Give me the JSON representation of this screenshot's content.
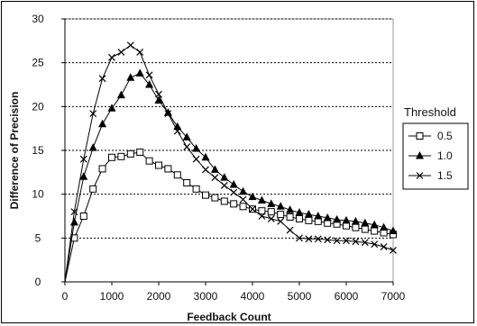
{
  "chart_data": {
    "type": "line",
    "title": "",
    "xlabel": "Feedback Count",
    "ylabel": "Difference of Precision",
    "xlim": [
      0,
      7000
    ],
    "ylim": [
      0,
      30
    ],
    "xticks": [
      0,
      1000,
      2000,
      3000,
      4000,
      5000,
      6000,
      7000
    ],
    "yticks": [
      0,
      5,
      10,
      15,
      20,
      25,
      30
    ],
    "grid": "horizontal dashed",
    "legend": {
      "title": "Threshold",
      "position": "right"
    },
    "series": [
      {
        "name": "0.5",
        "marker": "square-open",
        "x": [
          0,
          200,
          400,
          600,
          800,
          1000,
          1200,
          1400,
          1600,
          1800,
          2000,
          2200,
          2400,
          2600,
          2800,
          3000,
          3200,
          3400,
          3600,
          3800,
          4000,
          4200,
          4400,
          4600,
          4800,
          5000,
          5200,
          5400,
          5600,
          5800,
          6000,
          6200,
          6400,
          6600,
          6800,
          7000
        ],
        "y": [
          0,
          5,
          7.5,
          10.6,
          12.9,
          14.2,
          14.3,
          14.6,
          14.8,
          13.8,
          13.3,
          12.9,
          12.2,
          11.3,
          10.6,
          9.9,
          9.6,
          9.2,
          8.9,
          8.6,
          8.3,
          8.1,
          8,
          7.7,
          7.4,
          7.2,
          7,
          6.9,
          6.7,
          6.6,
          6.4,
          6.2,
          6,
          5.8,
          5.6,
          5.4
        ]
      },
      {
        "name": "1.0",
        "marker": "triangle-filled",
        "x": [
          0,
          200,
          400,
          600,
          800,
          1000,
          1200,
          1400,
          1600,
          1800,
          2000,
          2200,
          2400,
          2600,
          2800,
          3000,
          3200,
          3400,
          3600,
          3800,
          4000,
          4200,
          4400,
          4600,
          4800,
          5000,
          5200,
          5400,
          5600,
          5800,
          6000,
          6200,
          6400,
          6600,
          6800,
          7000
        ],
        "y": [
          0,
          6.8,
          12,
          15.3,
          18,
          19.8,
          21.3,
          23.3,
          23.8,
          22.5,
          20.7,
          19.3,
          17.7,
          16.5,
          15.2,
          14.2,
          12.8,
          11.9,
          11.1,
          10.3,
          9.7,
          9.3,
          8.9,
          8.6,
          8.2,
          7.9,
          7.7,
          7.5,
          7.3,
          7.1,
          7,
          6.9,
          6.7,
          6.5,
          6.2,
          5.8
        ]
      },
      {
        "name": "1.5",
        "marker": "x-cross",
        "x": [
          0,
          200,
          400,
          600,
          800,
          1000,
          1200,
          1400,
          1600,
          1800,
          2000,
          2200,
          2400,
          2600,
          2800,
          3000,
          3200,
          3400,
          3600,
          3800,
          4000,
          4200,
          4400,
          4600,
          4800,
          5000,
          5200,
          5400,
          5600,
          5800,
          6000,
          6200,
          6400,
          6600,
          6800,
          7000
        ],
        "y": [
          0,
          8,
          14,
          19.2,
          23.2,
          25.6,
          26.2,
          27,
          26.2,
          23.6,
          21.4,
          19.2,
          17.2,
          15.4,
          14,
          12.8,
          11.9,
          11,
          10.2,
          9.4,
          8.3,
          7.5,
          7.2,
          6.9,
          5.9,
          5,
          4.9,
          4.9,
          4.8,
          4.7,
          4.7,
          4.6,
          4.5,
          4.3,
          4,
          3.6
        ]
      }
    ]
  },
  "colors": {
    "line": "#000000",
    "grid": "#000000",
    "plot_border": "#999999"
  }
}
